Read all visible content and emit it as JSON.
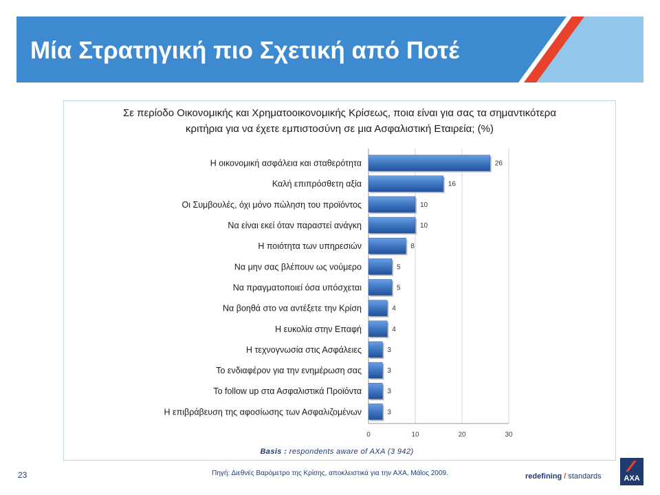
{
  "header": {
    "title": "Μία Στρατηγική πιο Σχετική από Ποτέ"
  },
  "colors": {
    "header_blue": "#3e8ad0",
    "header_light_blue": "#92c7ea",
    "header_red_stripe": "#e8412c",
    "bar_fill": "#3f77c3",
    "axa_blue": "#1f3a6e"
  },
  "chart_data": {
    "type": "bar",
    "orientation": "horizontal",
    "title_line1": "Σε περίοδο Οικονομικής και Χρηματοοικονομικής Κρίσεως, ποια είναι για σας τα σημαντικότερα",
    "title_line2": "κριτήρια για να έχετε εμπιστοσύνη σε μια Ασφαλιστική Εταιρεία; (%)",
    "categories": [
      "Η οικονομική ασφάλεια και σταθερότητα",
      "Καλή επιπρόσθετη αξία",
      "Οι Συμβουλές, όχι μόνο πώληση του προϊόντος",
      "Να είναι εκεί όταν παραστεί ανάγκη",
      "Η ποιότητα των υπηρεσιών",
      "Να μην σας βλέπουν ως νούμερο",
      "Να πραγματοποιεί όσα υπόσχεται",
      "Να βοηθά στο να αντέξετε την Κρίση",
      "Η ευκολία στην Επαφή",
      "Η τεχνογνωσία στις Ασφάλειες",
      "Το ενδιαφέρον για την ενημέρωση σας",
      "Το follow up στα Ασφαλιστικά Προϊόντα",
      "Η επιβράβευση της αφοσίωσης των Ασφαλιζομένων"
    ],
    "values": [
      26,
      16,
      10,
      10,
      8,
      5,
      5,
      4,
      4,
      3,
      3,
      3,
      3
    ],
    "xlim": [
      0,
      30
    ],
    "xticks": [
      0,
      10,
      20,
      30
    ],
    "grid": true,
    "legend": "none"
  },
  "footer": {
    "basis_label": "Basis :",
    "basis_text": " respondents aware of AXA (3 942)",
    "page_number": "23",
    "source": "Πηγή: Διεθνές Βαρόμετρο της Κρίσης, αποκλειστικά για την AXA, Μάϊος 2009.",
    "tagline_bold": "redefining",
    "tagline_slash": " / ",
    "tagline_rest": "standards",
    "logo_text": "AXA"
  }
}
